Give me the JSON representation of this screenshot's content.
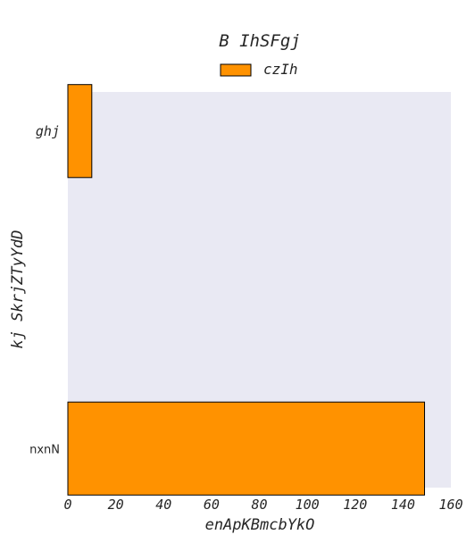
{
  "chart_data": {
    "type": "bar",
    "orientation": "horizontal",
    "title": "B IhSFgj",
    "xlabel": "enApKBmcbYkO",
    "ylabel": "kj SkrjZTyYdD",
    "categories": [
      "ghj",
      "nxnN"
    ],
    "series": [
      {
        "name": "czIh",
        "values": [
          10,
          149
        ],
        "color": "#ff9200"
      }
    ],
    "xlim": [
      0,
      160
    ],
    "xticks": [
      0,
      20,
      40,
      60,
      80,
      100,
      120,
      140,
      160
    ],
    "grid": false,
    "legend_position": "top-center",
    "plot_background": "#e9e9f3",
    "bar_edge_color": "#000000"
  }
}
